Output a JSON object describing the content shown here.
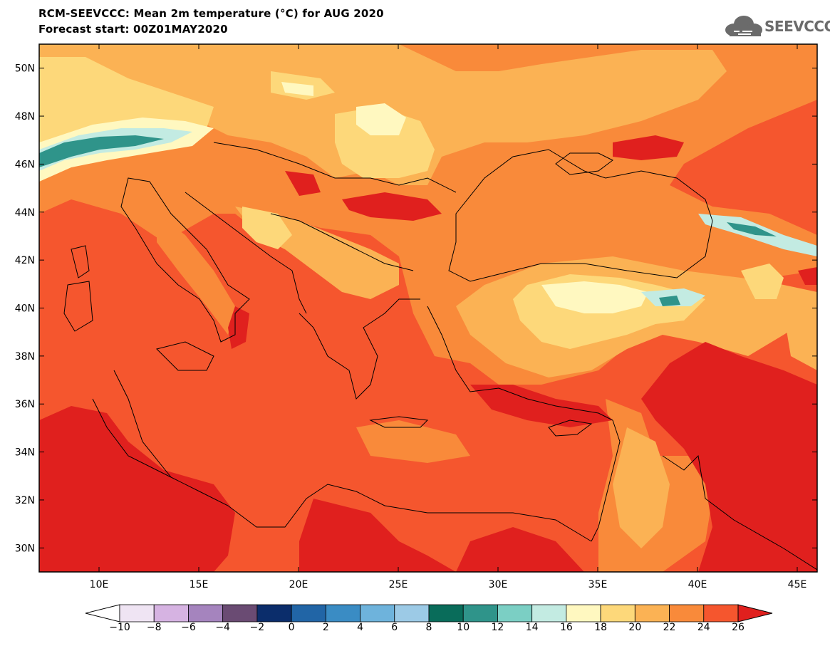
{
  "header": {
    "title": "RCM-SEEVCCC: Mean 2m temperature (°C) for AUG 2020",
    "subtitle": "Forecast start: 00Z01MAY2020",
    "logo_text": "SEEVCCC"
  },
  "map": {
    "variable": "Mean 2m temperature",
    "unit": "°C",
    "lon_range": [
      7,
      46
    ],
    "lat_range": [
      29,
      51
    ],
    "lon_ticks": [
      "10E",
      "15E",
      "20E",
      "25E",
      "30E",
      "35E",
      "40E",
      "45E"
    ],
    "lat_ticks": [
      "50N",
      "48N",
      "46N",
      "44N",
      "42N",
      "40N",
      "38N",
      "36N",
      "34N",
      "32N",
      "30N"
    ],
    "palette": {
      "lt18": "#fff8c0",
      "18_20": "#fdd87a",
      "20_22": "#fbb254",
      "22_24": "#f98a3a",
      "24_26": "#f5562e",
      "gt26": "#e0201e",
      "cold_14_16": "#c3ebe2",
      "cold_10_12": "#2f948a"
    }
  },
  "colorbar": {
    "labels": [
      "−10",
      "−8",
      "−6",
      "−4",
      "−2",
      "0",
      "2",
      "4",
      "6",
      "8",
      "10",
      "12",
      "14",
      "16",
      "18",
      "20",
      "22",
      "24",
      "26"
    ],
    "colors": [
      "#ffffff",
      "#efe4f3",
      "#d6b3e2",
      "#a584be",
      "#6a4b73",
      "#0b2d6b",
      "#2165a6",
      "#3a8cc4",
      "#6eb3dc",
      "#9ccae6",
      "#096c5a",
      "#2f948a",
      "#7bcfc4",
      "#c3ebe2",
      "#fff8c0",
      "#fdd87a",
      "#fbb254",
      "#f98a3a",
      "#f5562e",
      "#e0201e"
    ]
  }
}
